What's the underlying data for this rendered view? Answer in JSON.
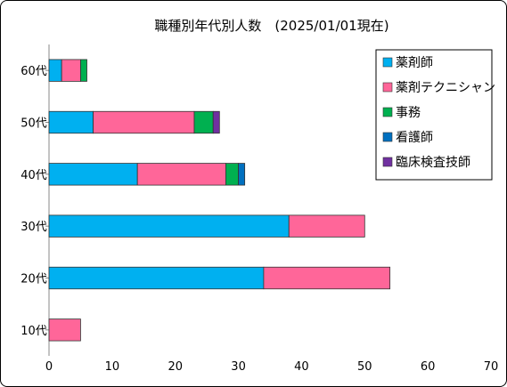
{
  "chart_data": {
    "type": "bar",
    "orientation": "horizontal",
    "stacked": true,
    "title": "職種別年代別人数　(2025/01/01現在)",
    "xlabel": "",
    "ylabel": "",
    "xlim": [
      0,
      70
    ],
    "xticks": [
      0,
      10,
      20,
      30,
      40,
      50,
      60,
      70
    ],
    "grid": false,
    "legend_position": "top-right",
    "categories": [
      "60代",
      "50代",
      "40代",
      "30代",
      "20代",
      "10代"
    ],
    "series": [
      {
        "name": "薬剤師",
        "color": "#00B0F0",
        "values": [
          2,
          7,
          14,
          38,
          34,
          0
        ]
      },
      {
        "name": "薬剤テクニシャン",
        "color": "#FF6699",
        "values": [
          3,
          16,
          14,
          12,
          20,
          5
        ]
      },
      {
        "name": "事務",
        "color": "#00B050",
        "values": [
          1,
          3,
          2,
          0,
          0,
          0
        ]
      },
      {
        "name": "看護師",
        "color": "#0070C0",
        "values": [
          0,
          0,
          1,
          0,
          0,
          0
        ]
      },
      {
        "name": "臨床検査技師",
        "color": "#7030A0",
        "values": [
          0,
          1,
          0,
          0,
          0,
          0
        ]
      }
    ]
  }
}
